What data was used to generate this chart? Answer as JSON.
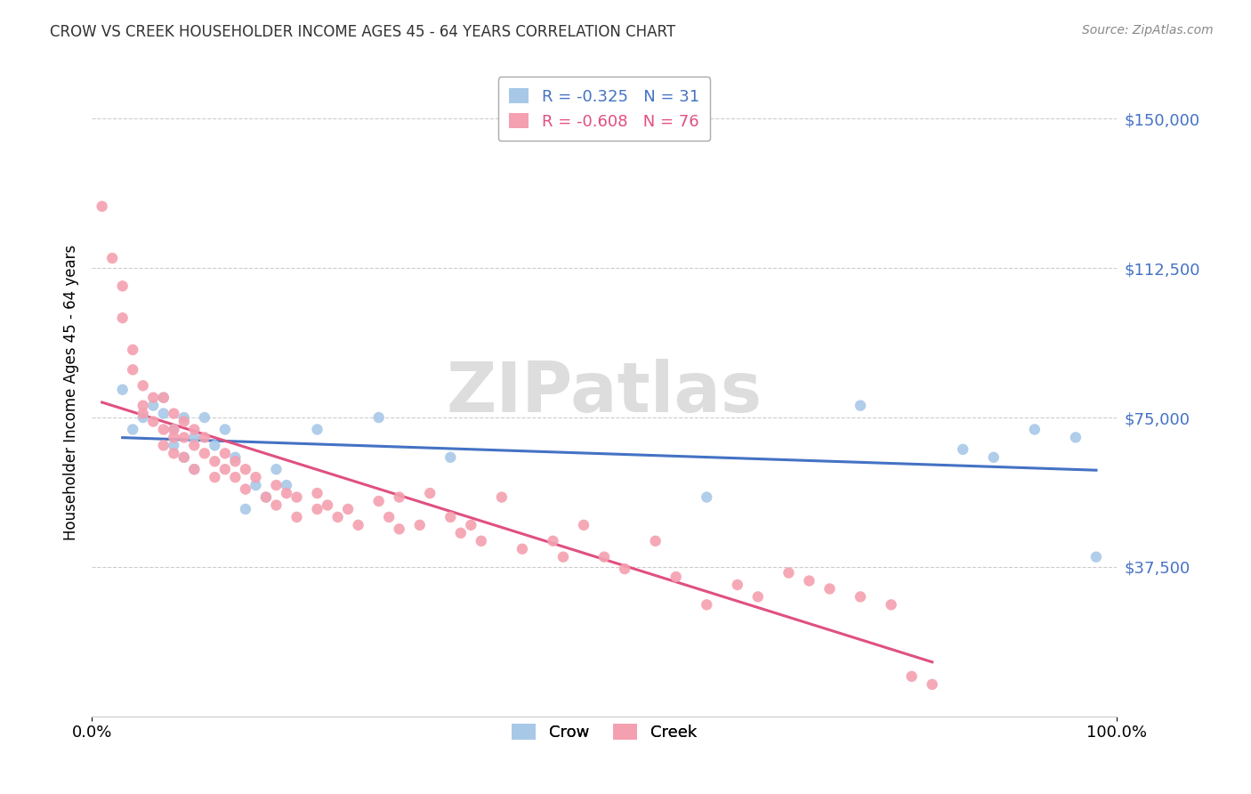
{
  "title": "CROW VS CREEK HOUSEHOLDER INCOME AGES 45 - 64 YEARS CORRELATION CHART",
  "source": "Source: ZipAtlas.com",
  "ylabel": "Householder Income Ages 45 - 64 years",
  "xlim": [
    0.0,
    1.0
  ],
  "ylim": [
    0,
    162500
  ],
  "yticks": [
    0,
    37500,
    75000,
    112500,
    150000
  ],
  "ytick_labels": [
    "",
    "$37,500",
    "$75,000",
    "$112,500",
    "$150,000"
  ],
  "crow_R": -0.325,
  "crow_N": 31,
  "creek_R": -0.608,
  "creek_N": 76,
  "crow_color": "#a8c8e8",
  "creek_color": "#f4a0b0",
  "trendline_crow_color": "#4472c4",
  "trendline_creek_color": "#e05080",
  "crow_points": [
    [
      0.03,
      82000
    ],
    [
      0.04,
      72000
    ],
    [
      0.05,
      75000
    ],
    [
      0.06,
      78000
    ],
    [
      0.07,
      80000
    ],
    [
      0.07,
      76000
    ],
    [
      0.08,
      72000
    ],
    [
      0.08,
      68000
    ],
    [
      0.09,
      75000
    ],
    [
      0.09,
      65000
    ],
    [
      0.1,
      70000
    ],
    [
      0.1,
      62000
    ],
    [
      0.11,
      75000
    ],
    [
      0.12,
      68000
    ],
    [
      0.13,
      72000
    ],
    [
      0.14,
      65000
    ],
    [
      0.15,
      52000
    ],
    [
      0.16,
      58000
    ],
    [
      0.17,
      55000
    ],
    [
      0.18,
      62000
    ],
    [
      0.19,
      58000
    ],
    [
      0.22,
      72000
    ],
    [
      0.28,
      75000
    ],
    [
      0.35,
      65000
    ],
    [
      0.6,
      55000
    ],
    [
      0.75,
      78000
    ],
    [
      0.85,
      67000
    ],
    [
      0.88,
      65000
    ],
    [
      0.92,
      72000
    ],
    [
      0.96,
      70000
    ],
    [
      0.98,
      40000
    ]
  ],
  "creek_points": [
    [
      0.01,
      128000
    ],
    [
      0.02,
      115000
    ],
    [
      0.03,
      108000
    ],
    [
      0.03,
      100000
    ],
    [
      0.04,
      92000
    ],
    [
      0.04,
      87000
    ],
    [
      0.05,
      83000
    ],
    [
      0.05,
      78000
    ],
    [
      0.05,
      76000
    ],
    [
      0.06,
      80000
    ],
    [
      0.06,
      74000
    ],
    [
      0.07,
      80000
    ],
    [
      0.07,
      72000
    ],
    [
      0.07,
      68000
    ],
    [
      0.08,
      76000
    ],
    [
      0.08,
      72000
    ],
    [
      0.08,
      70000
    ],
    [
      0.08,
      66000
    ],
    [
      0.09,
      74000
    ],
    [
      0.09,
      70000
    ],
    [
      0.09,
      65000
    ],
    [
      0.1,
      72000
    ],
    [
      0.1,
      68000
    ],
    [
      0.1,
      62000
    ],
    [
      0.11,
      70000
    ],
    [
      0.11,
      66000
    ],
    [
      0.12,
      64000
    ],
    [
      0.12,
      60000
    ],
    [
      0.13,
      66000
    ],
    [
      0.13,
      62000
    ],
    [
      0.14,
      64000
    ],
    [
      0.14,
      60000
    ],
    [
      0.15,
      62000
    ],
    [
      0.15,
      57000
    ],
    [
      0.16,
      60000
    ],
    [
      0.17,
      55000
    ],
    [
      0.18,
      58000
    ],
    [
      0.18,
      53000
    ],
    [
      0.19,
      56000
    ],
    [
      0.2,
      55000
    ],
    [
      0.2,
      50000
    ],
    [
      0.22,
      56000
    ],
    [
      0.22,
      52000
    ],
    [
      0.23,
      53000
    ],
    [
      0.24,
      50000
    ],
    [
      0.25,
      52000
    ],
    [
      0.26,
      48000
    ],
    [
      0.28,
      54000
    ],
    [
      0.29,
      50000
    ],
    [
      0.3,
      47000
    ],
    [
      0.3,
      55000
    ],
    [
      0.32,
      48000
    ],
    [
      0.33,
      56000
    ],
    [
      0.35,
      50000
    ],
    [
      0.36,
      46000
    ],
    [
      0.37,
      48000
    ],
    [
      0.38,
      44000
    ],
    [
      0.4,
      55000
    ],
    [
      0.42,
      42000
    ],
    [
      0.45,
      44000
    ],
    [
      0.46,
      40000
    ],
    [
      0.48,
      48000
    ],
    [
      0.5,
      40000
    ],
    [
      0.52,
      37000
    ],
    [
      0.55,
      44000
    ],
    [
      0.57,
      35000
    ],
    [
      0.6,
      28000
    ],
    [
      0.63,
      33000
    ],
    [
      0.65,
      30000
    ],
    [
      0.68,
      36000
    ],
    [
      0.7,
      34000
    ],
    [
      0.72,
      32000
    ],
    [
      0.75,
      30000
    ],
    [
      0.78,
      28000
    ],
    [
      0.8,
      10000
    ],
    [
      0.82,
      8000
    ]
  ]
}
